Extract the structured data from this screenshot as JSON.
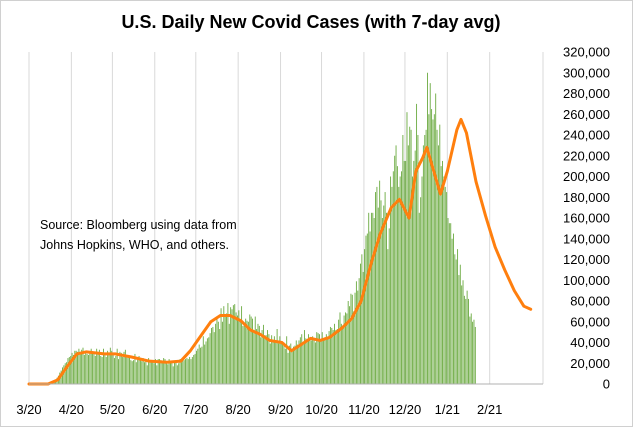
{
  "chart_data": {
    "type": "bar",
    "title": "U.S. Daily New Covid Cases (with 7-day avg)",
    "annotation": [
      "Source:  Bloomberg using data from",
      "Johns Hopkins, WHO, and others."
    ],
    "x_axis": {
      "start": "2020-03-01",
      "end": "2021-03-12",
      "tick_labels": [
        "3/20",
        "4/20",
        "5/20",
        "6/20",
        "7/20",
        "8/20",
        "9/20",
        "10/20",
        "11/20",
        "12/20",
        "1/21",
        "2/21"
      ],
      "tick_dates": [
        "2020-03-01",
        "2020-04-01",
        "2020-05-01",
        "2020-06-01",
        "2020-07-01",
        "2020-08-01",
        "2020-09-01",
        "2020-10-01",
        "2020-11-01",
        "2020-12-01",
        "2021-01-01",
        "2021-02-01"
      ]
    },
    "y_axis": {
      "position": "right",
      "ylim": [
        0,
        320000
      ],
      "tick_values": [
        0,
        20000,
        40000,
        60000,
        80000,
        100000,
        120000,
        140000,
        160000,
        180000,
        200000,
        220000,
        240000,
        260000,
        280000,
        300000,
        320000
      ],
      "tick_labels": [
        "0",
        "20,000",
        "40,000",
        "60,000",
        "80,000",
        "100,000",
        "120,000",
        "140,000",
        "160,000",
        "180,000",
        "200,000",
        "220,000",
        "240,000",
        "260,000",
        "280,000",
        "300,000",
        "320,000"
      ]
    },
    "grid": "vertical",
    "series": [
      {
        "kind": "bar",
        "color": "#70ad47",
        "values": [
          0,
          0,
          0,
          0,
          0,
          0,
          0,
          0,
          0,
          0,
          0,
          0,
          0,
          0,
          0,
          0,
          500,
          1000,
          2000,
          4000,
          6000,
          8000,
          11000,
          13000,
          16000,
          18000,
          20000,
          21000,
          25000,
          26000,
          27000,
          30000,
          28000,
          32000,
          32000,
          31000,
          34000,
          30000,
          33000,
          35000,
          28000,
          32000,
          29000,
          28000,
          30000,
          34000,
          31000,
          30000,
          27000,
          34000,
          29000,
          33000,
          27000,
          26000,
          34000,
          29000,
          26000,
          32000,
          30000,
          35000,
          32000,
          28000,
          25000,
          27000,
          34000,
          24000,
          31000,
          30000,
          26000,
          31000,
          33000,
          28000,
          25000,
          26000,
          23000,
          22000,
          23000,
          29000,
          21000,
          24000,
          27000,
          24000,
          22000,
          25000,
          21000,
          23000,
          18000,
          25000,
          21000,
          22000,
          23000,
          20000,
          24000,
          18000,
          24000,
          24000,
          23000,
          21000,
          25000,
          24000,
          20000,
          19000,
          24000,
          21000,
          22000,
          17000,
          21000,
          23000,
          18000,
          20000,
          24000,
          21000,
          22000,
          23000,
          24000,
          25000,
          24000,
          26000,
          24000,
          26000,
          28000,
          29000,
          32000,
          34000,
          38000,
          35000,
          36000,
          46000,
          38000,
          41000,
          44000,
          45000,
          49000,
          54000,
          55000,
          50000,
          58000,
          64000,
          60000,
          53000,
          73000,
          60000,
          75000,
          66000,
          68000,
          78000,
          58000,
          74000,
          72000,
          76000,
          77000,
          69000,
          66000,
          71000,
          61000,
          75000,
          56000,
          58000,
          63000,
          61000,
          60000,
          67000,
          65000,
          63000,
          51000,
          65000,
          53000,
          58000,
          56000,
          45000,
          52000,
          57000,
          47000,
          47000,
          52000,
          48000,
          39000,
          47000,
          42000,
          46000,
          42000,
          53000,
          39000,
          46000,
          41000,
          41000,
          40000,
          34000,
          46000,
          30000,
          37000,
          39000,
          33000,
          36000,
          37000,
          42000,
          38000,
          42000,
          45000,
          48000,
          40000,
          52000,
          44000,
          41000,
          48000,
          45000,
          42000,
          46000,
          44000,
          40000,
          50000,
          49000,
          48000,
          42000,
          50000,
          43000,
          45000,
          48000,
          45000,
          51000,
          55000,
          54000,
          52000,
          58000,
          52000,
          53000,
          62000,
          69000,
          58000,
          56000,
          66000,
          69000,
          68000,
          80000,
          75000,
          87000,
          86000,
          70000,
          88000,
          99000,
          90000,
          102000,
          116000,
          125000,
          108000,
          130000,
          143000,
          145000,
          165000,
          147000,
          165000,
          165000,
          160000,
          185000,
          190000,
          170000,
          196000,
          177000,
          160000,
          172000,
          185000,
          165000,
          130000,
          150000,
          200000,
          190000,
          205000,
          220000,
          230000,
          210000,
          190000,
          200000,
          205000,
          240000,
          215000,
          215000,
          262000,
          230000,
          248000,
          245000,
          200000,
          215000,
          225000,
          270000,
          240000,
          165000,
          180000,
          200000,
          230000,
          240000,
          245000,
          300000,
          260000,
          290000,
          265000,
          255000,
          260000,
          280000,
          245000,
          230000,
          250000,
          210000,
          215000,
          200000,
          190000,
          185000,
          160000,
          155000,
          155000,
          140000,
          145000,
          125000,
          120000,
          130000,
          105000,
          115000,
          95000,
          100000,
          85000,
          82000,
          90000,
          82000,
          65000,
          68000,
          60000,
          62000,
          55000
        ]
      },
      {
        "kind": "line",
        "name": "7-day avg",
        "color": "#ff7f0e",
        "points": [
          [
            "2020-03-01",
            0
          ],
          [
            "2020-03-15",
            0
          ],
          [
            "2020-03-22",
            4000
          ],
          [
            "2020-03-29",
            17000
          ],
          [
            "2020-04-05",
            29000
          ],
          [
            "2020-04-12",
            31000
          ],
          [
            "2020-04-25",
            29000
          ],
          [
            "2020-05-03",
            29000
          ],
          [
            "2020-05-15",
            26000
          ],
          [
            "2020-05-28",
            22000
          ],
          [
            "2020-06-10",
            21000
          ],
          [
            "2020-06-20",
            22000
          ],
          [
            "2020-06-27",
            32000
          ],
          [
            "2020-07-05",
            47000
          ],
          [
            "2020-07-12",
            60000
          ],
          [
            "2020-07-19",
            66000
          ],
          [
            "2020-07-26",
            66000
          ],
          [
            "2020-08-03",
            61000
          ],
          [
            "2020-08-10",
            52000
          ],
          [
            "2020-08-17",
            48000
          ],
          [
            "2020-08-24",
            42000
          ],
          [
            "2020-09-02",
            40000
          ],
          [
            "2020-09-09",
            32000
          ],
          [
            "2020-09-16",
            38000
          ],
          [
            "2020-09-23",
            44000
          ],
          [
            "2020-09-30",
            42000
          ],
          [
            "2020-10-07",
            45000
          ],
          [
            "2020-10-16",
            54000
          ],
          [
            "2020-10-23",
            63000
          ],
          [
            "2020-10-30",
            80000
          ],
          [
            "2020-11-06",
            115000
          ],
          [
            "2020-11-13",
            145000
          ],
          [
            "2020-11-21",
            170000
          ],
          [
            "2020-11-27",
            178000
          ],
          [
            "2020-12-04",
            160000
          ],
          [
            "2020-12-09",
            205000
          ],
          [
            "2020-12-14",
            218000
          ],
          [
            "2020-12-17",
            228000
          ],
          [
            "2020-12-21",
            210000
          ],
          [
            "2020-12-27",
            183000
          ],
          [
            "2021-01-01",
            205000
          ],
          [
            "2021-01-08",
            245000
          ],
          [
            "2021-01-11",
            255000
          ],
          [
            "2021-01-15",
            242000
          ],
          [
            "2021-01-22",
            195000
          ],
          [
            "2021-01-29",
            162000
          ],
          [
            "2021-02-05",
            132000
          ],
          [
            "2021-02-12",
            110000
          ],
          [
            "2021-02-19",
            90000
          ],
          [
            "2021-02-26",
            75000
          ],
          [
            "2021-03-03",
            72000
          ]
        ]
      }
    ]
  }
}
